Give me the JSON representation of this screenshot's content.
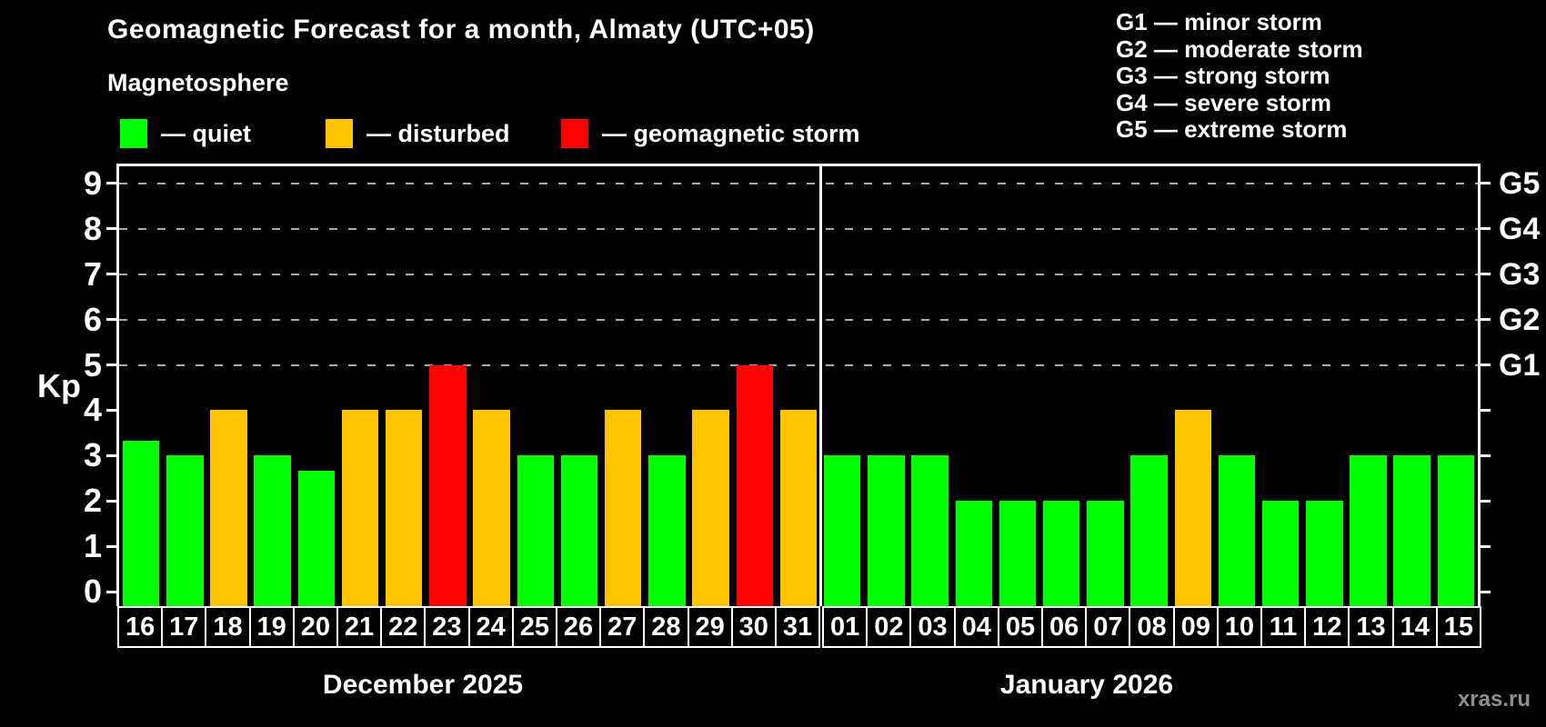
{
  "title": "Geomagnetic Forecast for a month, Almaty (UTC+05)",
  "subtitle": "Magnetosphere",
  "watermark": "xras.ru",
  "legend": {
    "items": [
      {
        "key": "quiet",
        "label": "— quiet",
        "color": "#00ff00"
      },
      {
        "key": "disturbed",
        "label": "— disturbed",
        "color": "#ffc300"
      },
      {
        "key": "storm",
        "label": "— geomagnetic storm",
        "color": "#ff0000"
      }
    ]
  },
  "g_legend": [
    "G1 — minor storm",
    "G2 — moderate storm",
    "G3 — strong storm",
    "G4 — severe storm",
    "G5 — extreme storm"
  ],
  "chart_data": {
    "type": "bar",
    "title": "Geomagnetic Forecast for a month, Almaty (UTC+05)",
    "ylabel": "Kp",
    "ylim": [
      0,
      9
    ],
    "yticks": [
      0,
      1,
      2,
      3,
      4,
      5,
      6,
      7,
      8,
      9
    ],
    "grid_kp_levels": [
      5,
      6,
      7,
      8,
      9
    ],
    "right_axis": [
      {
        "kp": 5,
        "label": "G1"
      },
      {
        "kp": 6,
        "label": "G2"
      },
      {
        "kp": 7,
        "label": "G3"
      },
      {
        "kp": 8,
        "label": "G4"
      },
      {
        "kp": 9,
        "label": "G5"
      }
    ],
    "status_colors": {
      "quiet": "#00ff00",
      "disturbed": "#ffc300",
      "storm": "#ff0000"
    },
    "legend_position": "top-left",
    "grid": "dashed-horizontal-at-storm-levels",
    "months": [
      {
        "label": "December 2025",
        "days": [
          {
            "day": "16",
            "kp": 3.33,
            "status": "quiet"
          },
          {
            "day": "17",
            "kp": 3,
            "status": "quiet"
          },
          {
            "day": "18",
            "kp": 4,
            "status": "disturbed"
          },
          {
            "day": "19",
            "kp": 3,
            "status": "quiet"
          },
          {
            "day": "20",
            "kp": 2.67,
            "status": "quiet"
          },
          {
            "day": "21",
            "kp": 4,
            "status": "disturbed"
          },
          {
            "day": "22",
            "kp": 4,
            "status": "disturbed"
          },
          {
            "day": "23",
            "kp": 5,
            "status": "storm"
          },
          {
            "day": "24",
            "kp": 4,
            "status": "disturbed"
          },
          {
            "day": "25",
            "kp": 3,
            "status": "quiet"
          },
          {
            "day": "26",
            "kp": 3,
            "status": "quiet"
          },
          {
            "day": "27",
            "kp": 4,
            "status": "disturbed"
          },
          {
            "day": "28",
            "kp": 3,
            "status": "quiet"
          },
          {
            "day": "29",
            "kp": 4,
            "status": "disturbed"
          },
          {
            "day": "30",
            "kp": 5,
            "status": "storm"
          },
          {
            "day": "31",
            "kp": 4,
            "status": "disturbed"
          }
        ]
      },
      {
        "label": "January 2026",
        "days": [
          {
            "day": "01",
            "kp": 3,
            "status": "quiet"
          },
          {
            "day": "02",
            "kp": 3,
            "status": "quiet"
          },
          {
            "day": "03",
            "kp": 3,
            "status": "quiet"
          },
          {
            "day": "04",
            "kp": 2,
            "status": "quiet"
          },
          {
            "day": "05",
            "kp": 2,
            "status": "quiet"
          },
          {
            "day": "06",
            "kp": 2,
            "status": "quiet"
          },
          {
            "day": "07",
            "kp": 2,
            "status": "quiet"
          },
          {
            "day": "08",
            "kp": 3,
            "status": "quiet"
          },
          {
            "day": "09",
            "kp": 4,
            "status": "disturbed"
          },
          {
            "day": "10",
            "kp": 3,
            "status": "quiet"
          },
          {
            "day": "11",
            "kp": 2,
            "status": "quiet"
          },
          {
            "day": "12",
            "kp": 2,
            "status": "quiet"
          },
          {
            "day": "13",
            "kp": 3,
            "status": "quiet"
          },
          {
            "day": "14",
            "kp": 3,
            "status": "quiet"
          },
          {
            "day": "15",
            "kp": 3,
            "status": "quiet"
          }
        ]
      }
    ]
  }
}
